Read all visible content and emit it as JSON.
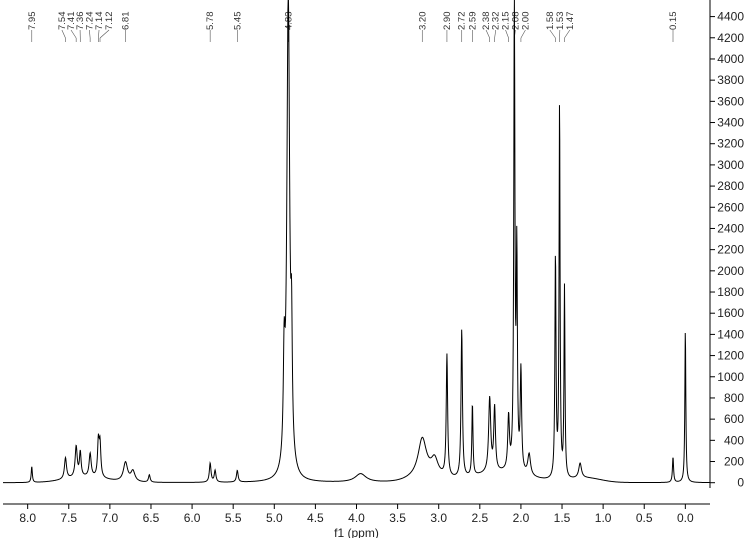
{
  "chart_data": {
    "type": "line",
    "title": "",
    "xlabel": "f1 (ppm)",
    "ylabel": "",
    "x_reversed": true,
    "xlim": [
      8.3,
      -0.3
    ],
    "ylim": [
      -50,
      4500
    ],
    "y_axis_side": "right",
    "grid": false,
    "x_ticks": [
      "8.0",
      "7.5",
      "7.0",
      "6.5",
      "6.0",
      "5.5",
      "5.0",
      "4.5",
      "4.0",
      "3.5",
      "3.0",
      "2.5",
      "2.0",
      "1.5",
      "1.0",
      "0.5",
      "0.0"
    ],
    "y_ticks": [
      "0",
      "200",
      "400",
      "600",
      "800",
      "1000",
      "1200",
      "1400",
      "1600",
      "1800",
      "2000",
      "2200",
      "2400",
      "2600",
      "2800",
      "3000",
      "3200",
      "3400",
      "3600",
      "3800",
      "4000",
      "4200",
      "4400"
    ],
    "peak_labels": [
      "7.95",
      "7.54",
      "7.41",
      "7.36",
      "7.24",
      "7.14",
      "7.12",
      "6.81",
      "5.78",
      "5.45",
      "4.83",
      "3.20",
      "2.90",
      "2.72",
      "2.59",
      "2.38",
      "2.32",
      "2.15",
      "2.08",
      "2.00",
      "1.58",
      "1.53",
      "1.47",
      "0.15"
    ],
    "peaks": [
      {
        "ppm": 7.95,
        "height": 150,
        "width": 0.008
      },
      {
        "ppm": 7.54,
        "height": 200,
        "width": 0.015
      },
      {
        "ppm": 7.41,
        "height": 290,
        "width": 0.015
      },
      {
        "ppm": 7.36,
        "height": 230,
        "width": 0.012
      },
      {
        "ppm": 7.24,
        "height": 220,
        "width": 0.015
      },
      {
        "ppm": 7.14,
        "height": 330,
        "width": 0.012
      },
      {
        "ppm": 7.12,
        "height": 300,
        "width": 0.012
      },
      {
        "ppm": 6.81,
        "height": 180,
        "width": 0.03
      },
      {
        "ppm": 6.72,
        "height": 100,
        "width": 0.03
      },
      {
        "ppm": 6.52,
        "height": 70,
        "width": 0.012
      },
      {
        "ppm": 5.78,
        "height": 180,
        "width": 0.012
      },
      {
        "ppm": 5.72,
        "height": 110,
        "width": 0.012
      },
      {
        "ppm": 5.45,
        "height": 110,
        "width": 0.012
      },
      {
        "ppm": 4.88,
        "height": 900,
        "width": 0.012
      },
      {
        "ppm": 4.83,
        "height": 4600,
        "width": 0.02
      },
      {
        "ppm": 4.79,
        "height": 1000,
        "width": 0.01
      },
      {
        "ppm": 3.95,
        "height": 80,
        "width": 0.08
      },
      {
        "ppm": 3.2,
        "height": 350,
        "width": 0.06
      },
      {
        "ppm": 3.05,
        "height": 150,
        "width": 0.05
      },
      {
        "ppm": 2.9,
        "height": 1150,
        "width": 0.01
      },
      {
        "ppm": 2.72,
        "height": 1400,
        "width": 0.01
      },
      {
        "ppm": 2.59,
        "height": 680,
        "width": 0.008
      },
      {
        "ppm": 2.38,
        "height": 700,
        "width": 0.015
      },
      {
        "ppm": 2.32,
        "height": 600,
        "width": 0.012
      },
      {
        "ppm": 2.15,
        "height": 500,
        "width": 0.012
      },
      {
        "ppm": 2.08,
        "height": 4500,
        "width": 0.008
      },
      {
        "ppm": 2.05,
        "height": 2000,
        "width": 0.008
      },
      {
        "ppm": 2.0,
        "height": 950,
        "width": 0.01
      },
      {
        "ppm": 1.9,
        "height": 200,
        "width": 0.02
      },
      {
        "ppm": 1.58,
        "height": 2100,
        "width": 0.008
      },
      {
        "ppm": 1.53,
        "height": 3550,
        "width": 0.007
      },
      {
        "ppm": 1.47,
        "height": 1800,
        "width": 0.007
      },
      {
        "ppm": 1.28,
        "height": 140,
        "width": 0.02
      },
      {
        "ppm": 0.15,
        "height": 240,
        "width": 0.008
      },
      {
        "ppm": 0.0,
        "height": 1440,
        "width": 0.007
      }
    ],
    "series": [
      {
        "values_source": "peaks",
        "color": "#000000"
      }
    ]
  }
}
